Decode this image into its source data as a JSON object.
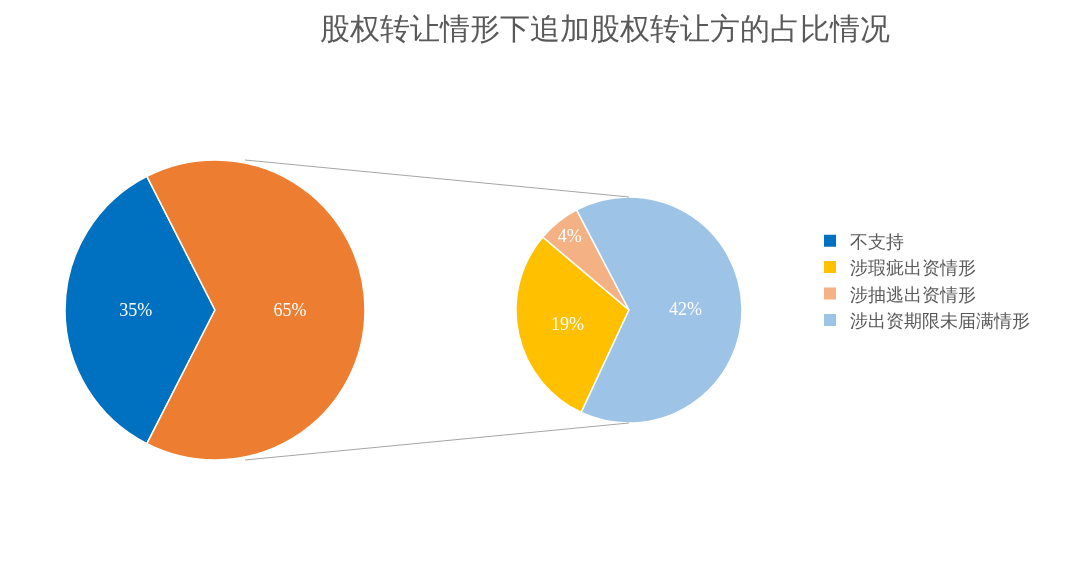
{
  "chart_data": [
    {
      "type": "pie",
      "title": "股权转让情形下追加股权转让方的占比情况",
      "categories": [
        "不支持",
        null
      ],
      "values": [
        35,
        65
      ],
      "colors": [
        "#0070c0",
        "#ed7d31"
      ],
      "value_labels": [
        "35%",
        "65%"
      ],
      "legend": "right"
    },
    {
      "type": "pie",
      "categories": [
        "涉瑕疵出资情形",
        "涉抽逃出资情形",
        "涉出资期限未届满情形"
      ],
      "values": [
        19,
        4,
        42
      ],
      "colors": [
        "#ffc000",
        "#f4b183",
        "#9dc3e6"
      ],
      "value_labels": [
        "19%",
        "4%",
        "42%"
      ],
      "legend": "right"
    }
  ]
}
